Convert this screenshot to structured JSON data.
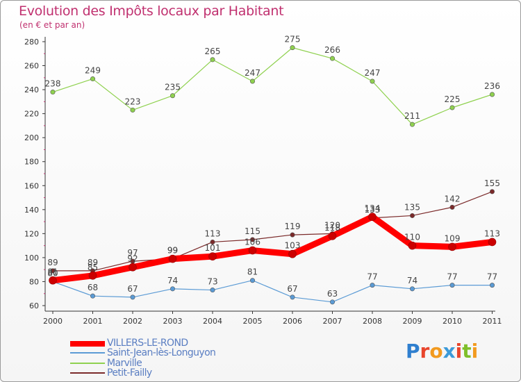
{
  "title": "Evolution des Impôts locaux par Habitant",
  "subtitle": "(en € et par an)",
  "logo": {
    "text": "Proxiti",
    "letter_colors": [
      "#2f7fcf",
      "#e8452c",
      "#f29a1f",
      "#3c9ad8",
      "#e8452c",
      "#7fbf2a",
      "#f29a1f"
    ]
  },
  "chart_data": {
    "type": "line",
    "title": "Evolution des Impôts locaux par Habitant",
    "subtitle": "(en € et par an)",
    "x": [
      "2000",
      "2001",
      "2002",
      "2003",
      "2004",
      "2005",
      "2006",
      "2007",
      "2008",
      "2009",
      "2010",
      "2011"
    ],
    "ylim": [
      60,
      280
    ],
    "yticks": [
      60,
      80,
      100,
      120,
      140,
      160,
      180,
      200,
      220,
      240,
      260,
      280
    ],
    "grid": false,
    "legend_position": "bottom-left",
    "series": [
      {
        "name": "VILLERS-LE-ROND",
        "color": "#ff0000",
        "values": [
          81,
          85,
          92,
          99,
          101,
          106,
          103,
          118,
          134,
          110,
          109,
          113
        ],
        "labels": [
          "81",
          "85",
          "92",
          "99",
          "101",
          "106",
          "103",
          "118",
          "134",
          "110",
          "109",
          "113"
        ]
      },
      {
        "name": "Saint-Jean-lès-Longuyon",
        "color": "#5b9bd5",
        "values": [
          80,
          68,
          67,
          74,
          73,
          81,
          67,
          63,
          77,
          74,
          77,
          77
        ],
        "labels": [
          "80",
          "68",
          "67",
          "74",
          "73",
          "81",
          "67",
          "63",
          "77",
          "74",
          "77",
          "77"
        ]
      },
      {
        "name": "Marville",
        "color": "#8fd14f",
        "values": [
          238,
          249,
          223,
          235,
          265,
          247,
          275,
          266,
          247,
          211,
          225,
          236
        ],
        "labels": [
          "238",
          "249",
          "223",
          "235",
          "265",
          "247",
          "275",
          "266",
          "247",
          "211",
          "225",
          "236"
        ]
      },
      {
        "name": "Petit-Failly",
        "color": "#7b2a2a",
        "values": [
          89,
          89,
          97,
          99,
          113,
          115,
          119,
          120,
          133,
          135,
          142,
          155
        ],
        "labels": [
          "89",
          "89",
          "97",
          "99",
          "113",
          "115",
          "119",
          "120",
          "133",
          "135",
          "142",
          "155"
        ]
      }
    ]
  }
}
